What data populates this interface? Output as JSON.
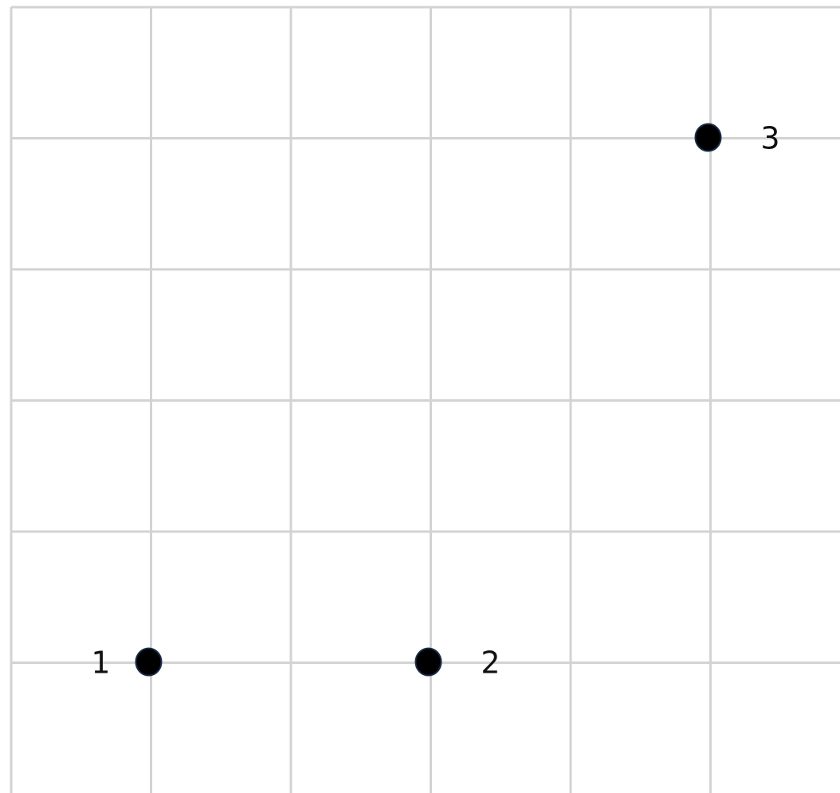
{
  "grid": {
    "columns": 6,
    "rows": 6,
    "line_color": "#d3d3d3"
  },
  "points": [
    {
      "label": "1",
      "col": 1,
      "row": 5,
      "label_side": "left"
    },
    {
      "label": "2",
      "col": 3,
      "row": 5,
      "label_side": "right"
    },
    {
      "label": "3",
      "col": 5,
      "row": 1,
      "label_side": "right"
    }
  ],
  "colors": {
    "point_fill": "#000000",
    "point_stroke": "#1a2a4a",
    "label": "#111111",
    "background": "#ffffff"
  }
}
